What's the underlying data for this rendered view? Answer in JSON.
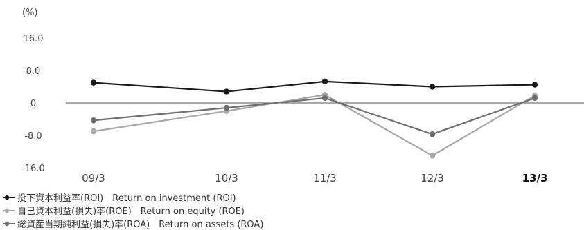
{
  "chart_data": {
    "type": "line",
    "ylabel": "(%)",
    "ylim": [
      -16.0,
      16.0
    ],
    "yticks": [
      "16.0",
      "8.0",
      "0",
      "-8.0",
      "-16.0"
    ],
    "ytick_values": [
      16,
      8,
      0,
      -8,
      -16
    ],
    "categories": [
      "09/3",
      "10/3",
      "11/3",
      "12/3",
      "13/3"
    ],
    "highlight_category": "13/3",
    "grid": false,
    "zero_line": true,
    "legend_position": "bottom-left",
    "series": [
      {
        "name": "投下資本利益率(ROI)　Return on investment (ROI)",
        "color": "#1a1a1a",
        "values": [
          5.0,
          2.8,
          5.3,
          4.0,
          4.5
        ]
      },
      {
        "name": "自己資本利益(損失)率(ROE)　Return on equity (ROE)",
        "color": "#a8a8a8",
        "values": [
          -7.0,
          -2.0,
          2.0,
          -13.0,
          1.8
        ]
      },
      {
        "name": "総資産当期純利益(損失)率(ROA)　Return on assets (ROA)",
        "color": "#6e6e6e",
        "values": [
          -4.3,
          -1.2,
          1.2,
          -7.7,
          1.2
        ]
      }
    ]
  }
}
